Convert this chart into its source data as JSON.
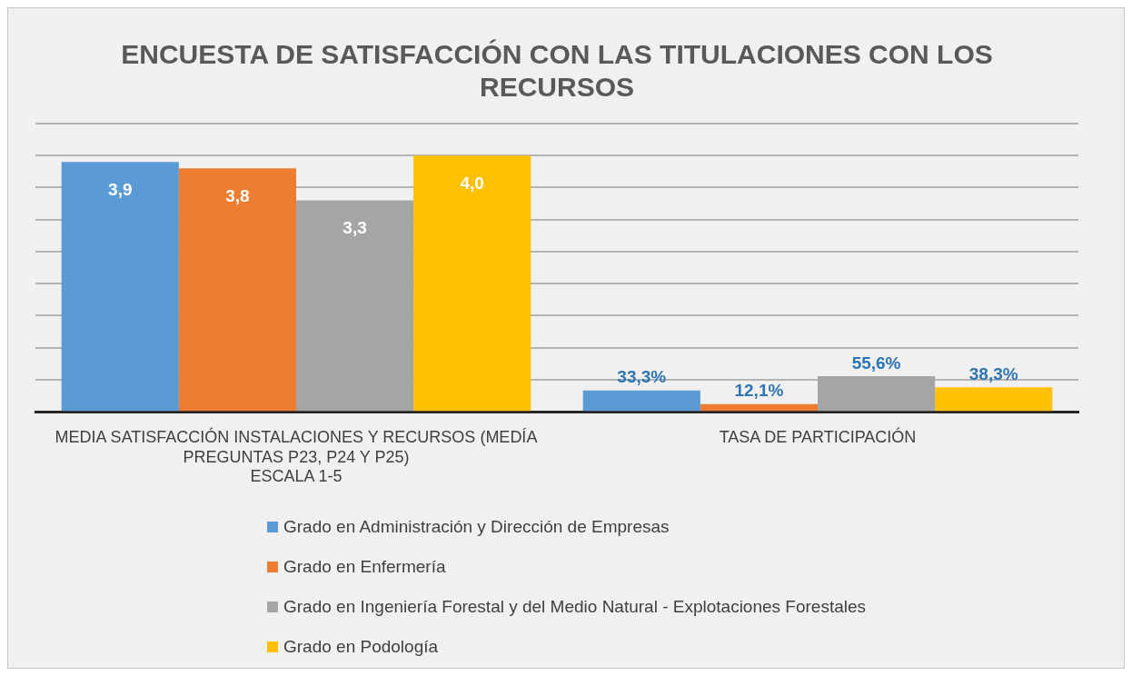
{
  "chart_data": {
    "type": "bar",
    "title": "ENCUESTA DE SATISFACCIÓN CON LAS TITULACIONES CON LOS RECURSOS",
    "categories": [
      "MEDIA SATISFACCIÓN INSTALACIONES Y RECURSOS (MEDÍA PREGUNTAS P23, P24 Y P25)\nESCALA 1-5",
      "TASA DE PARTICIPACIÓN"
    ],
    "series": [
      {
        "name": "Grado en Administración y Dirección de Empresas",
        "color": "#5b9bd5",
        "values": [
          3.9,
          0.333
        ],
        "value_labels": [
          "3,9",
          "33,3%"
        ]
      },
      {
        "name": "Grado en Enfermería",
        "color": "#ed7d31",
        "values": [
          3.8,
          0.121
        ],
        "value_labels": [
          "3,8",
          "12,1%"
        ]
      },
      {
        "name": "Grado en Ingeniería Forestal y del Medio Natural - Explotaciones Forestales",
        "color": "#a5a5a5",
        "values": [
          3.3,
          0.556
        ],
        "value_labels": [
          "3,3",
          "55,6%"
        ]
      },
      {
        "name": "Grado en Podología",
        "color": "#ffc000",
        "values": [
          4.0,
          0.383
        ],
        "value_labels": [
          "4,0",
          "38,3%"
        ]
      }
    ],
    "tick_labels": "x",
    "grid": "y",
    "legend": "bottom"
  }
}
